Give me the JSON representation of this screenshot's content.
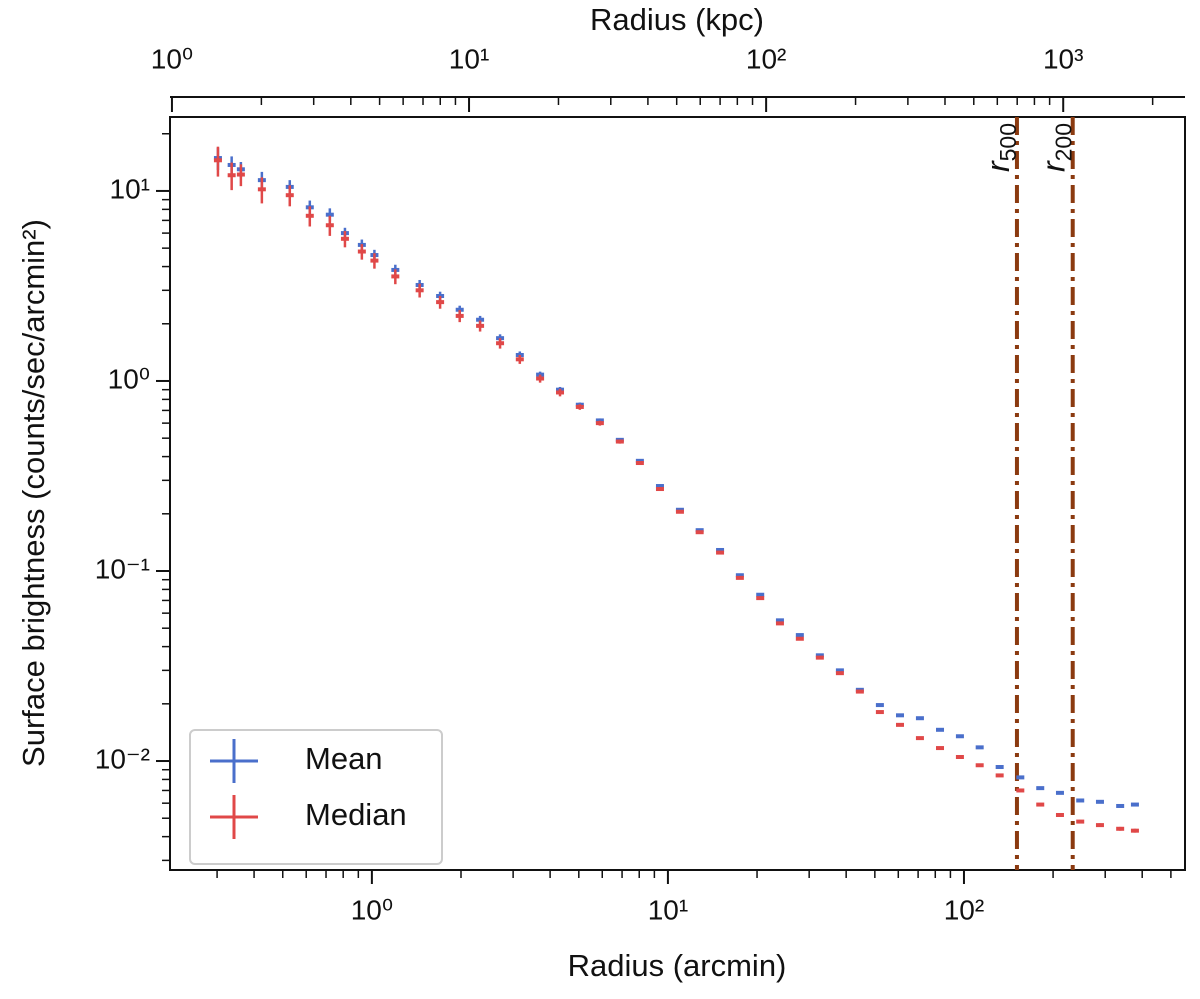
{
  "chart_data": {
    "type": "scatter",
    "xlabel": "Radius (arcmin)",
    "x2label": "Radius (kpc)",
    "ylabel": "Surface brightness (counts/sec/arcmin²)",
    "xscale": "log",
    "yscale": "log",
    "x2scale": "log",
    "minor_ticks": true,
    "legend": "lower left",
    "xlim": [
      0.208,
      558
    ],
    "x2lim": [
      0.985,
      2570
    ],
    "ylim": [
      0.00267,
      24.5
    ],
    "xticks": [
      {
        "value": 1,
        "label": "10⁰"
      },
      {
        "value": 10,
        "label": "10¹"
      },
      {
        "value": 100,
        "label": "10²"
      }
    ],
    "x2ticks": [
      {
        "value": 1,
        "label": "10⁰"
      },
      {
        "value": 10,
        "label": "10¹"
      },
      {
        "value": 100,
        "label": "10²"
      },
      {
        "value": 1000,
        "label": "10³"
      }
    ],
    "yticks": [
      {
        "value": 0.01,
        "label": "10⁻²"
      },
      {
        "value": 0.1,
        "label": "10⁻¹"
      },
      {
        "value": 1,
        "label": "10⁰"
      },
      {
        "value": 10,
        "label": "10¹"
      }
    ],
    "x": [
      0.302,
      0.336,
      0.361,
      0.425,
      0.528,
      0.617,
      0.721,
      0.811,
      0.925,
      1.02,
      1.2,
      1.45,
      1.7,
      1.98,
      2.32,
      2.71,
      3.16,
      3.7,
      4.32,
      5.04,
      5.89,
      6.88,
      8.04,
      9.4,
      10.98,
      12.8,
      15.0,
      17.5,
      20.5,
      23.9,
      27.9,
      32.6,
      38.1,
      44.5,
      52.0,
      60.8,
      71.0,
      83.0,
      96.9,
      113,
      132,
      155,
      181,
      211,
      247,
      288,
      337,
      378
    ],
    "series": [
      {
        "name": "Mean",
        "color": "#4a6fcb",
        "values": [
          14.9,
          13.7,
          13,
          11.4,
          10.5,
          8.2,
          7.5,
          6.0,
          5.2,
          4.6,
          3.84,
          3.2,
          2.8,
          2.37,
          2.1,
          1.68,
          1.37,
          1.08,
          0.9,
          0.75,
          0.62,
          0.49,
          0.38,
          0.28,
          0.21,
          0.164,
          0.129,
          0.095,
          0.075,
          0.055,
          0.046,
          0.036,
          0.03,
          0.0237,
          0.0197,
          0.0174,
          0.0168,
          0.0146,
          0.0135,
          0.0118,
          0.0093,
          0.0082,
          0.0072,
          0.0068,
          0.0062,
          0.0061,
          0.0058,
          0.0059
        ],
        "errors": [
          2.0,
          1.5,
          1.2,
          1.2,
          0.9,
          0.7,
          0.6,
          0.4,
          0.35,
          0.3,
          0.25,
          0.2,
          0.15,
          0.12,
          0.1,
          0.08,
          0.06,
          0.04,
          0.03,
          0.02,
          0.015,
          0.01,
          0.007,
          0.005,
          0.003,
          0.002,
          0.0015,
          0.001,
          0.0008,
          0.0006,
          0.0005,
          0.0004,
          0.0003,
          0.0002,
          0.0002,
          0.0002,
          0.0002,
          0.0002,
          0.0001,
          0.0001,
          0.0001,
          0.0001,
          0.0001,
          0.0001,
          0.0001,
          0.0001,
          0.0001,
          0.0001
        ]
      },
      {
        "name": "Median",
        "color": "#e04848",
        "values": [
          14.5,
          12.1,
          12.2,
          10.2,
          9.5,
          7.4,
          6.6,
          5.6,
          4.8,
          4.3,
          3.55,
          3.0,
          2.6,
          2.2,
          1.95,
          1.58,
          1.3,
          1.03,
          0.87,
          0.73,
          0.6,
          0.48,
          0.37,
          0.27,
          0.205,
          0.16,
          0.125,
          0.092,
          0.072,
          0.053,
          0.044,
          0.035,
          0.029,
          0.0232,
          0.0181,
          0.0155,
          0.0132,
          0.0117,
          0.0105,
          0.0095,
          0.0084,
          0.007,
          0.0059,
          0.0052,
          0.0048,
          0.0046,
          0.0044,
          0.0043
        ],
        "errors": [
          2.6,
          2.0,
          1.6,
          1.6,
          1.2,
          0.9,
          0.8,
          0.55,
          0.45,
          0.4,
          0.32,
          0.25,
          0.2,
          0.16,
          0.13,
          0.1,
          0.07,
          0.05,
          0.04,
          0.025,
          0.018,
          0.012,
          0.008,
          0.006,
          0.004,
          0.0025,
          0.0018,
          0.0012,
          0.0009,
          0.0007,
          0.0005,
          0.0004,
          0.0003,
          0.0002,
          0.0002,
          0.0002,
          0.0002,
          0.0002,
          0.0001,
          0.0001,
          0.0001,
          0.0001,
          0.0001,
          0.0001,
          0.0001,
          0.0001,
          0.0001,
          0.0001
        ]
      }
    ],
    "vlines": [
      {
        "label": "r",
        "subscript": "500",
        "x": 151,
        "color": "#8b3a10"
      },
      {
        "label": "r",
        "subscript": "200",
        "x": 233,
        "color": "#8b3a10"
      }
    ]
  }
}
